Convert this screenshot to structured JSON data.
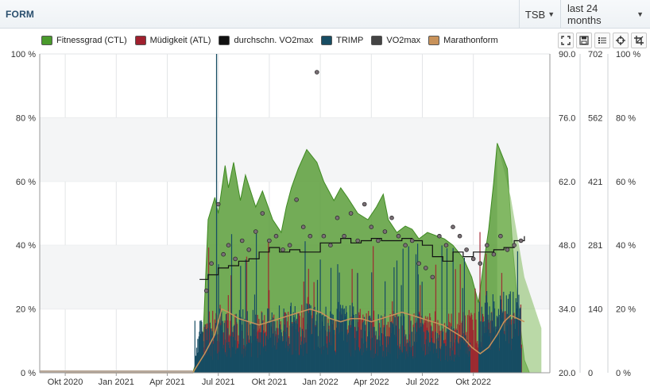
{
  "header": {
    "title": "FORM",
    "metric_select": "TSB",
    "range_select": "last 24 months"
  },
  "legend": [
    {
      "label": "Fitnessgrad (CTL)",
      "color": "#4a9a2c"
    },
    {
      "label": "Müdigkeit (ATL)",
      "color": "#a0202e"
    },
    {
      "label": "durchschn. VO2max",
      "color": "#111111"
    },
    {
      "label": "TRIMP",
      "color": "#174d63"
    },
    {
      "label": "VO2max",
      "color": "#444444"
    },
    {
      "label": "Marathonform",
      "color": "#c8925a"
    }
  ],
  "toolbar": [
    "fullscreen-icon",
    "save-icon",
    "list-icon",
    "crosshair-icon",
    "crop-icon"
  ],
  "chart_data": {
    "type": "area",
    "x_tick_labels": [
      "Okt 2020",
      "Jan 2021",
      "Apr 2021",
      "Jul 2021",
      "Okt 2021",
      "Jan 2022",
      "Apr 2022",
      "Jul 2022",
      "Okt 2022"
    ],
    "axes": {
      "left_percent": {
        "ticks": [
          "100 %",
          "80 %",
          "60 %",
          "40 %",
          "20 %",
          "0 %"
        ],
        "ylim": [
          0,
          100
        ]
      },
      "vo2max": {
        "ticks": [
          "90.0",
          "76.0",
          "62.0",
          "48.0",
          "34.0",
          "20.0"
        ],
        "ylim": [
          20,
          90
        ]
      },
      "trimp": {
        "ticks": [
          "702",
          "562",
          "421",
          "281",
          "140",
          "0"
        ],
        "ylim": [
          0,
          702
        ]
      },
      "right_percent": {
        "ticks": [
          "100 %",
          "80 %",
          "60 %",
          "40 %",
          "20 %",
          "0 %"
        ],
        "ylim": [
          0,
          100
        ]
      }
    },
    "series": [
      {
        "name": "Fitnessgrad (CTL)",
        "unit": "percent",
        "points": [
          [
            0,
            0
          ],
          [
            7.5,
            0
          ],
          [
            8.1,
            10
          ],
          [
            8.4,
            48
          ],
          [
            8.8,
            55
          ],
          [
            9.0,
            50
          ],
          [
            9.4,
            65
          ],
          [
            9.6,
            58
          ],
          [
            9.9,
            66
          ],
          [
            10.3,
            54
          ],
          [
            10.6,
            62
          ],
          [
            11.2,
            52
          ],
          [
            11.6,
            57
          ],
          [
            12.2,
            48
          ],
          [
            12.7,
            44
          ],
          [
            13.0,
            52
          ],
          [
            13.3,
            58
          ],
          [
            13.7,
            64
          ],
          [
            14.2,
            70
          ],
          [
            14.8,
            66
          ],
          [
            15.2,
            60
          ],
          [
            15.8,
            54
          ],
          [
            16.2,
            58
          ],
          [
            16.6,
            55
          ],
          [
            17.2,
            50
          ],
          [
            17.8,
            48
          ],
          [
            18.3,
            52
          ],
          [
            18.7,
            56
          ],
          [
            19.0,
            48
          ],
          [
            19.5,
            44
          ],
          [
            20.0,
            46
          ],
          [
            20.4,
            45
          ],
          [
            20.8,
            42
          ],
          [
            21.3,
            44
          ],
          [
            21.8,
            43
          ],
          [
            22.3,
            42
          ],
          [
            22.8,
            40
          ],
          [
            23.4,
            36
          ],
          [
            23.9,
            30
          ],
          [
            24.3,
            22
          ],
          [
            24.6,
            34
          ],
          [
            24.9,
            45
          ],
          [
            25.2,
            60
          ],
          [
            25.4,
            72
          ],
          [
            25.7,
            68
          ],
          [
            26.0,
            64
          ],
          [
            26.3,
            40
          ],
          [
            26.6,
            22
          ],
          [
            27.0,
            4
          ],
          [
            27.3,
            0
          ]
        ]
      },
      {
        "name": "Marathonform",
        "unit": "percent",
        "points": [
          [
            0,
            0
          ],
          [
            7.5,
            0
          ],
          [
            8.2,
            6
          ],
          [
            8.8,
            12
          ],
          [
            9.2,
            20
          ],
          [
            9.6,
            19
          ],
          [
            10.2,
            17
          ],
          [
            10.8,
            16
          ],
          [
            11.4,
            15
          ],
          [
            12.0,
            16
          ],
          [
            12.6,
            17
          ],
          [
            13.2,
            18
          ],
          [
            13.8,
            19
          ],
          [
            14.4,
            20
          ],
          [
            15.0,
            19
          ],
          [
            15.6,
            17
          ],
          [
            16.2,
            16
          ],
          [
            16.8,
            17
          ],
          [
            17.4,
            17
          ],
          [
            18.0,
            16
          ],
          [
            18.6,
            17
          ],
          [
            19.2,
            18
          ],
          [
            19.8,
            19
          ],
          [
            20.4,
            18
          ],
          [
            21.0,
            17
          ],
          [
            21.6,
            16
          ],
          [
            22.2,
            15
          ],
          [
            22.8,
            13
          ],
          [
            23.4,
            11
          ],
          [
            23.9,
            8
          ],
          [
            24.4,
            6
          ],
          [
            24.9,
            8
          ],
          [
            25.4,
            12
          ],
          [
            25.8,
            16
          ],
          [
            26.2,
            18
          ],
          [
            26.6,
            17
          ],
          [
            27.0,
            16
          ]
        ]
      },
      {
        "name": "durchschn. VO2max",
        "unit": "vo2max",
        "points": [
          [
            7.9,
            40.5
          ],
          [
            8.4,
            41.5
          ],
          [
            9.0,
            43
          ],
          [
            9.6,
            43.5
          ],
          [
            10.2,
            44.5
          ],
          [
            10.8,
            45
          ],
          [
            11.4,
            46.5
          ],
          [
            12.0,
            47.5
          ],
          [
            12.6,
            46.5
          ],
          [
            13.2,
            47
          ],
          [
            13.8,
            46.5
          ],
          [
            14.4,
            46.5
          ],
          [
            15.0,
            48.5
          ],
          [
            15.6,
            48.5
          ],
          [
            16.2,
            49.5
          ],
          [
            16.8,
            48.5
          ],
          [
            17.4,
            49
          ],
          [
            18.0,
            49.5
          ],
          [
            18.6,
            49
          ],
          [
            19.2,
            49
          ],
          [
            19.8,
            49.5
          ],
          [
            20.4,
            49
          ],
          [
            21.0,
            48
          ],
          [
            21.6,
            45.5
          ],
          [
            22.2,
            44.5
          ],
          [
            22.8,
            46.5
          ],
          [
            23.4,
            45.5
          ],
          [
            24.0,
            46.5
          ],
          [
            24.6,
            46.5
          ],
          [
            25.2,
            47
          ],
          [
            25.8,
            47.5
          ],
          [
            26.4,
            49
          ],
          [
            27.0,
            50
          ]
        ]
      },
      {
        "name": "VO2max",
        "unit": "vo2max",
        "points": [
          [
            8.3,
            38
          ],
          [
            8.6,
            44
          ],
          [
            9.0,
            57
          ],
          [
            9.3,
            46
          ],
          [
            9.6,
            48
          ],
          [
            10.0,
            45
          ],
          [
            10.4,
            49
          ],
          [
            10.8,
            47
          ],
          [
            11.2,
            51
          ],
          [
            11.6,
            55
          ],
          [
            12.0,
            49
          ],
          [
            12.4,
            50
          ],
          [
            12.8,
            47
          ],
          [
            13.2,
            48
          ],
          [
            13.6,
            58
          ],
          [
            14.0,
            52
          ],
          [
            14.4,
            50
          ],
          [
            14.8,
            86
          ],
          [
            15.2,
            50
          ],
          [
            15.6,
            48
          ],
          [
            16.0,
            54
          ],
          [
            16.4,
            50
          ],
          [
            16.8,
            55
          ],
          [
            17.2,
            49
          ],
          [
            17.6,
            57
          ],
          [
            18.0,
            52
          ],
          [
            18.4,
            49
          ],
          [
            18.8,
            51
          ],
          [
            19.2,
            54
          ],
          [
            19.6,
            50
          ],
          [
            20.0,
            48
          ],
          [
            20.4,
            49
          ],
          [
            20.8,
            44
          ],
          [
            21.2,
            43
          ],
          [
            21.6,
            41
          ],
          [
            22.0,
            50
          ],
          [
            22.4,
            48
          ],
          [
            22.8,
            52
          ],
          [
            23.2,
            50
          ],
          [
            23.6,
            47
          ],
          [
            24.0,
            45
          ],
          [
            24.4,
            44
          ],
          [
            24.8,
            48
          ],
          [
            25.2,
            46
          ],
          [
            25.6,
            50
          ],
          [
            26.0,
            47
          ],
          [
            26.4,
            48
          ],
          [
            26.8,
            49
          ]
        ]
      }
    ],
    "trimp_bars": {
      "name": "TRIMP",
      "unit": "trimp",
      "segments": [
        {
          "from_month": 7.6,
          "to_month": 9.0,
          "base": 90,
          "spike": 260
        },
        {
          "from_month": 9.0,
          "to_month": 12.0,
          "base": 110,
          "spike": 280
        },
        {
          "from_month": 12.0,
          "to_month": 17.0,
          "base": 120,
          "spike": 300
        },
        {
          "from_month": 17.0,
          "to_month": 21.0,
          "base": 100,
          "spike": 290
        },
        {
          "from_month": 21.0,
          "to_month": 23.8,
          "base": 80,
          "spike": 260
        },
        {
          "from_month": 24.3,
          "to_month": 26.8,
          "base": 140,
          "spike": 250
        }
      ]
    },
    "atl_bars": {
      "name": "Müdigkeit (ATL)",
      "unit": "percent",
      "segments": [
        {
          "from_month": 8.0,
          "to_month": 26.8,
          "base": 14,
          "spike": 32
        }
      ]
    },
    "xlim_months": [
      -1.5,
      28.5
    ]
  }
}
